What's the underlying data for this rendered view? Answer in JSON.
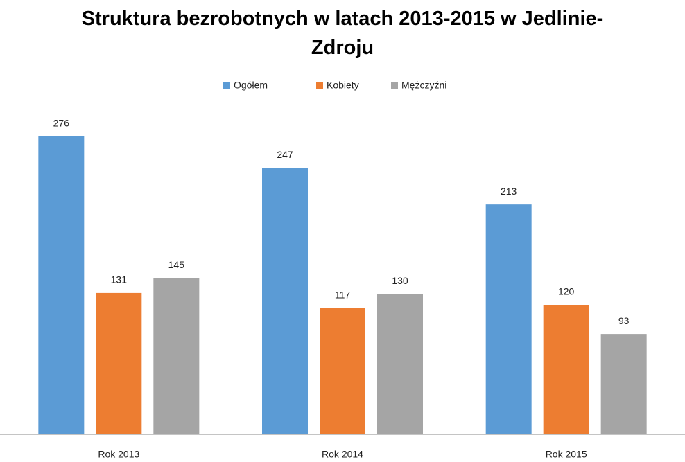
{
  "chart_data": {
    "type": "bar",
    "title": "Struktura bezrobotnych w latach 2013-2015  w Jedlinie-Zdroju",
    "categories": [
      "Rok 2013",
      "Rok 2014",
      "Rok 2015"
    ],
    "series": [
      {
        "name": "Ogółem",
        "color": "#5b9bd5",
        "values": [
          276,
          247,
          213
        ]
      },
      {
        "name": "Kobiety",
        "color": "#ed7d31",
        "values": [
          131,
          117,
          120
        ]
      },
      {
        "name": "Mężczyźni",
        "color": "#a5a5a5",
        "values": [
          145,
          130,
          93
        ]
      }
    ],
    "legend": "top"
  }
}
